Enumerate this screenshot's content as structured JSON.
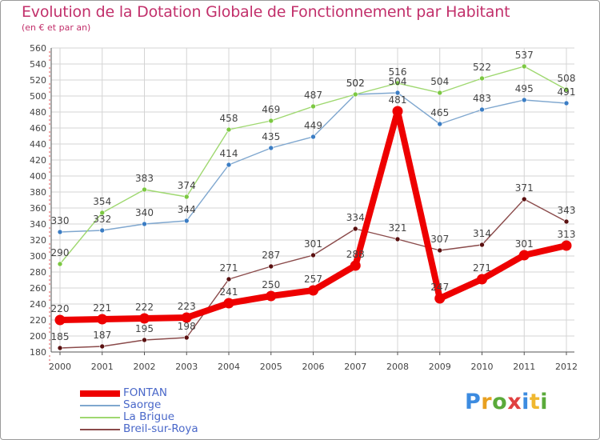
{
  "header": {
    "title": "Evolution de la Dotation Globale de Fonctionnement par Habitant",
    "subtitle": "(en € et par an)"
  },
  "logo": {
    "letters": [
      "P",
      "r",
      "o",
      "x",
      "i",
      "t",
      "i"
    ],
    "colors": [
      "#3c8be0",
      "#e8a020",
      "#5aaa3a",
      "#e04040",
      "#3c8be0",
      "#f0b830",
      "#5aaa3a"
    ]
  },
  "chart_data": {
    "type": "line",
    "title": "Evolution de la Dotation Globale de Fonctionnement par Habitant",
    "subtitle": "(en € et par an)",
    "xlabel": "",
    "ylabel": "",
    "ylim": [
      180,
      560
    ],
    "ytick_step": 20,
    "grid": true,
    "legend_position": "bottom-left",
    "categories": [
      "2000",
      "2001",
      "2002",
      "2003",
      "2004",
      "2005",
      "2006",
      "2007",
      "2008",
      "2009",
      "2010",
      "2011",
      "2012"
    ],
    "series": [
      {
        "name": "FONTAN",
        "color": "#ee0000",
        "marker": "#ee0000",
        "emphasis": true,
        "values": [
          220,
          221,
          222,
          223,
          241,
          250,
          257,
          288,
          481,
          247,
          271,
          301,
          313
        ]
      },
      {
        "name": "Saorge",
        "color": "#7fa7cf",
        "marker": "#3b7dc4",
        "emphasis": false,
        "values": [
          330,
          332,
          340,
          344,
          414,
          435,
          449,
          502,
          504,
          465,
          483,
          495,
          491
        ]
      },
      {
        "name": "La Brigue",
        "color": "#9fd870",
        "marker": "#7cc842",
        "emphasis": false,
        "values": [
          290,
          354,
          383,
          374,
          458,
          469,
          487,
          502,
          516,
          504,
          522,
          537,
          508
        ]
      },
      {
        "name": "Breil-sur-Roya",
        "color": "#8a4a4a",
        "marker": "#5a1010",
        "emphasis": false,
        "values": [
          185,
          187,
          195,
          198,
          271,
          287,
          301,
          334,
          321,
          307,
          314,
          371,
          343
        ]
      }
    ]
  }
}
